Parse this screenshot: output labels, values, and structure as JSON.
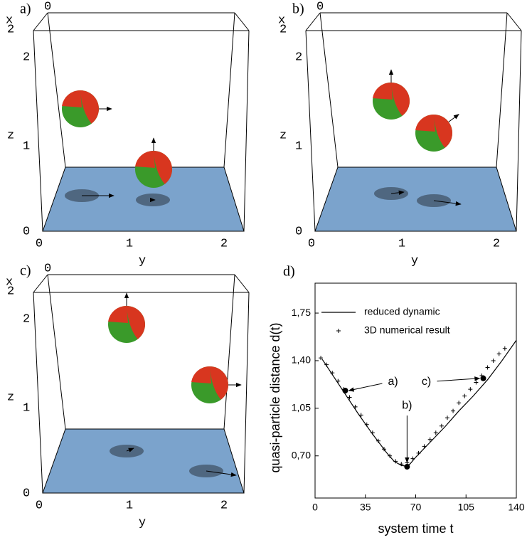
{
  "panels": [
    {
      "label": "a)",
      "x_label": "x",
      "y_label": "y",
      "z_label": "z",
      "x_ticks": [
        "0",
        "2"
      ],
      "y_ticks": [
        "0",
        "1",
        "2"
      ],
      "z_ticks": [
        "0",
        "1",
        "2"
      ]
    },
    {
      "label": "b)",
      "x_label": "x",
      "y_label": "y",
      "z_label": "z",
      "x_ticks": [
        "0",
        "2"
      ],
      "y_ticks": [
        "0",
        "1",
        "2"
      ],
      "z_ticks": [
        "0",
        "1",
        "2"
      ]
    },
    {
      "label": "c)",
      "x_label": "x",
      "y_label": "y",
      "z_label": "z",
      "x_ticks": [
        "0",
        "2"
      ],
      "y_ticks": [
        "0",
        "1",
        "2"
      ],
      "z_ticks": [
        "0",
        "1",
        "2"
      ]
    }
  ],
  "chart_data": {
    "type": "line",
    "panel_label": "d)",
    "x_label": "system time t",
    "y_label": "quasi-particle distance d(t)",
    "xlim": [
      0,
      140
    ],
    "xticks": [
      0,
      35,
      70,
      105,
      140
    ],
    "ylim": [
      0.39,
      1.97
    ],
    "yticks": [
      {
        "value": 0.7,
        "label": "0,70"
      },
      {
        "value": 1.05,
        "label": "1,05"
      },
      {
        "value": 1.4,
        "label": "1,40"
      },
      {
        "value": 1.75,
        "label": "1,75"
      }
    ],
    "legend": "top",
    "series": [
      {
        "name": "reduced dynamic",
        "color": "#000000",
        "style": "line",
        "x": [
          5,
          10,
          20,
          30,
          40,
          50,
          55,
          60,
          63,
          66,
          70,
          80,
          90,
          100,
          110,
          120,
          130,
          140
        ],
        "values": [
          1.41,
          1.33,
          1.17,
          1.01,
          0.86,
          0.72,
          0.66,
          0.63,
          0.625,
          0.64,
          0.69,
          0.8,
          0.91,
          1.03,
          1.14,
          1.26,
          1.4,
          1.55
        ]
      },
      {
        "name": "3D numerical result",
        "color": "#000000",
        "style": "cross",
        "x": [
          4,
          8,
          12,
          16,
          20,
          24,
          28,
          32,
          36,
          40,
          44,
          48,
          52,
          56,
          60,
          64,
          68,
          72,
          76,
          80,
          84,
          88,
          92,
          96,
          100,
          104,
          108,
          112,
          116,
          120,
          124,
          128,
          132
        ],
        "values": [
          1.42,
          1.37,
          1.31,
          1.25,
          1.19,
          1.13,
          1.06,
          1.0,
          0.93,
          0.87,
          0.81,
          0.75,
          0.7,
          0.66,
          0.64,
          0.65,
          0.68,
          0.72,
          0.77,
          0.82,
          0.87,
          0.92,
          0.98,
          1.03,
          1.09,
          1.14,
          1.19,
          1.24,
          1.29,
          1.35,
          1.4,
          1.45,
          1.49
        ]
      }
    ],
    "annotations": [
      {
        "text": "a)",
        "x": 21,
        "y": 1.18
      },
      {
        "text": "b)",
        "x": 64,
        "y": 0.62
      },
      {
        "text": "c)",
        "x": 117,
        "y": 1.27
      }
    ]
  }
}
